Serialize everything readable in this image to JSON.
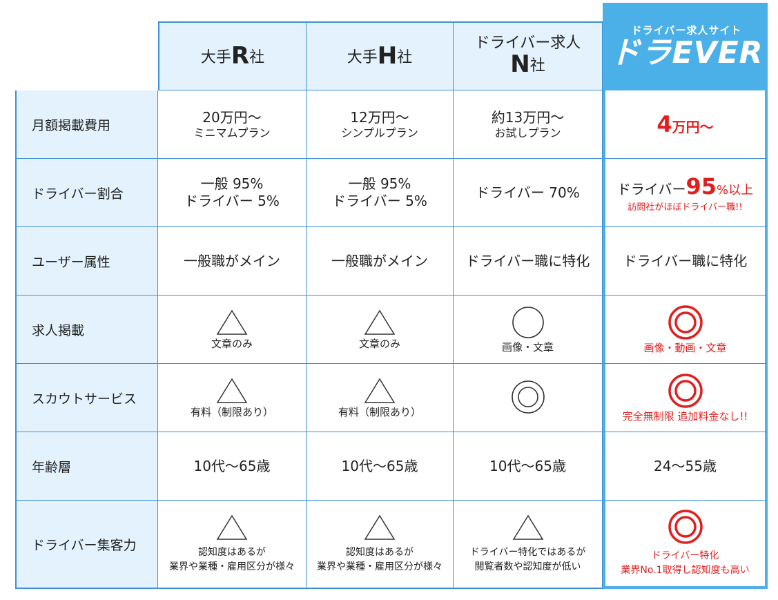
{
  "headers": {
    "r": {
      "pre": "大手",
      "letter": "R",
      "post": "社"
    },
    "h": {
      "pre": "大手",
      "letter": "H",
      "post": "社"
    },
    "n": {
      "line1": "ドライバー求人",
      "letter": "N",
      "post": "社"
    },
    "dv": {
      "sub": "ドライバー求人サイト",
      "logo": "ドラEVER"
    }
  },
  "rows": [
    {
      "label": "月額掲載費用"
    },
    {
      "label": "ドライバー割合"
    },
    {
      "label": "ユーザー属性"
    },
    {
      "label": "求人掲載"
    },
    {
      "label": "スカウトサービス"
    },
    {
      "label": "年齢層"
    },
    {
      "label": "ドライバー集客力"
    }
  ],
  "cost": {
    "r": {
      "main": "20万円〜",
      "sub": "ミニマムプラン"
    },
    "h": {
      "main": "12万円〜",
      "sub": "シンプルプラン"
    },
    "n": {
      "main": "約13万円〜",
      "sub": "お試しプラン"
    },
    "dv": {
      "num": "4",
      "unit": "万円〜"
    }
  },
  "ratio": {
    "r": {
      "line1": "一般 95%",
      "line2": "ドライバー 5%"
    },
    "h": {
      "line1": "一般 95%",
      "line2": "ドライバー 5%"
    },
    "n": {
      "line1": "ドライバー 70%"
    },
    "dv": {
      "pre": "ドライバー",
      "num": "95",
      "post": "%以上",
      "note": "訪問社がほぼドライバー職!!"
    }
  },
  "user": {
    "r": "一般職がメイン",
    "h": "一般職がメイン",
    "n": "ドライバー職に特化",
    "dv": "ドライバー職に特化"
  },
  "posting": {
    "r": {
      "symbol": "triangle",
      "note": "文章のみ"
    },
    "h": {
      "symbol": "triangle",
      "note": "文章のみ"
    },
    "n": {
      "symbol": "circle",
      "note": "画像・文章"
    },
    "dv": {
      "symbol": "double-circle",
      "note": "画像・動画・文章"
    }
  },
  "scout": {
    "r": {
      "symbol": "triangle",
      "note": "有料（制限あり）"
    },
    "h": {
      "symbol": "triangle",
      "note": "有料（制限あり）"
    },
    "n": {
      "symbol": "double-circle"
    },
    "dv": {
      "symbol": "double-circle",
      "note": "完全無制限 追加料金なし!!"
    }
  },
  "age": {
    "r": "10代〜65歳",
    "h": "10代〜65歳",
    "n": "10代〜65歳",
    "dv": "24〜55歳"
  },
  "attract": {
    "r": {
      "symbol": "triangle",
      "line1": "認知度はあるが",
      "line2": "業界や業種・雇用区分が様々"
    },
    "h": {
      "symbol": "triangle",
      "line1": "認知度はあるが",
      "line2": "業界や業種・雇用区分が様々"
    },
    "n": {
      "symbol": "triangle",
      "line1": "ドライバー特化ではあるが",
      "line2": "閲覧者数や認知度が低い"
    },
    "dv": {
      "symbol": "double-circle",
      "line1": "ドライバー特化",
      "line2": "業界No.1取得し認知度も高い"
    }
  },
  "colors": {
    "border": "#3a8fd8",
    "header_bg": "#e3f2fc",
    "brand": "#4bb0e8",
    "accent_red": "#e02020"
  }
}
